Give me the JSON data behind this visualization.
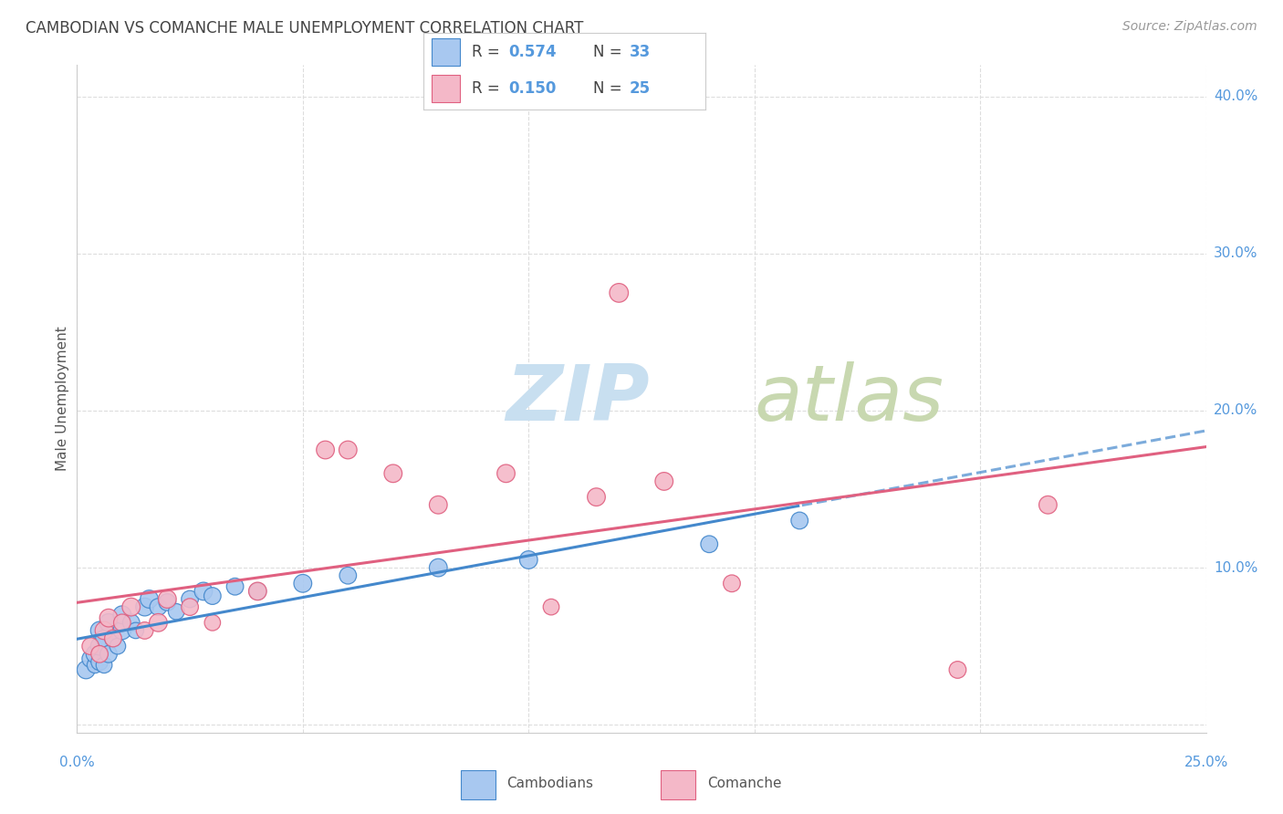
{
  "title": "CAMBODIAN VS COMANCHE MALE UNEMPLOYMENT CORRELATION CHART",
  "source": "Source: ZipAtlas.com",
  "ylabel": "Male Unemployment",
  "xlim": [
    0.0,
    0.25
  ],
  "ylim": [
    -0.005,
    0.42
  ],
  "yticks": [
    0.0,
    0.1,
    0.2,
    0.3,
    0.4
  ],
  "ytick_labels": [
    "",
    "10.0%",
    "20.0%",
    "30.0%",
    "40.0%"
  ],
  "xticks": [
    0.0,
    0.05,
    0.1,
    0.15,
    0.2,
    0.25
  ],
  "blue_color": "#a8c8f0",
  "pink_color": "#f4b8c8",
  "trend_blue": "#4488cc",
  "trend_pink": "#e06080",
  "blue_scatter_x": [
    0.002,
    0.003,
    0.004,
    0.004,
    0.005,
    0.005,
    0.005,
    0.006,
    0.006,
    0.007,
    0.007,
    0.008,
    0.009,
    0.01,
    0.01,
    0.012,
    0.013,
    0.015,
    0.016,
    0.018,
    0.02,
    0.022,
    0.025,
    0.028,
    0.03,
    0.035,
    0.04,
    0.05,
    0.06,
    0.08,
    0.1,
    0.14,
    0.16
  ],
  "blue_scatter_y": [
    0.035,
    0.042,
    0.038,
    0.045,
    0.04,
    0.05,
    0.06,
    0.038,
    0.055,
    0.045,
    0.065,
    0.055,
    0.05,
    0.06,
    0.07,
    0.065,
    0.06,
    0.075,
    0.08,
    0.075,
    0.078,
    0.072,
    0.08,
    0.085,
    0.082,
    0.088,
    0.085,
    0.09,
    0.095,
    0.1,
    0.105,
    0.115,
    0.13
  ],
  "blue_scatter_sizes": [
    200,
    180,
    160,
    200,
    180,
    200,
    200,
    160,
    180,
    180,
    200,
    180,
    160,
    200,
    200,
    180,
    160,
    200,
    200,
    180,
    180,
    160,
    180,
    200,
    180,
    180,
    180,
    200,
    180,
    200,
    200,
    180,
    180
  ],
  "pink_scatter_x": [
    0.003,
    0.005,
    0.006,
    0.007,
    0.008,
    0.01,
    0.012,
    0.015,
    0.018,
    0.02,
    0.025,
    0.03,
    0.04,
    0.055,
    0.06,
    0.07,
    0.08,
    0.095,
    0.105,
    0.115,
    0.12,
    0.13,
    0.145,
    0.195,
    0.215
  ],
  "pink_scatter_y": [
    0.05,
    0.045,
    0.06,
    0.068,
    0.055,
    0.065,
    0.075,
    0.06,
    0.065,
    0.08,
    0.075,
    0.065,
    0.085,
    0.175,
    0.175,
    0.16,
    0.14,
    0.16,
    0.075,
    0.145,
    0.275,
    0.155,
    0.09,
    0.035,
    0.14
  ],
  "pink_scatter_sizes": [
    180,
    180,
    200,
    200,
    180,
    180,
    200,
    180,
    200,
    200,
    180,
    160,
    200,
    200,
    200,
    200,
    200,
    200,
    160,
    200,
    220,
    200,
    180,
    180,
    200
  ],
  "watermark_zip": "ZIP",
  "watermark_atlas": "atlas",
  "watermark_color_zip": "#c8dff0",
  "watermark_color_atlas": "#c8d8b0",
  "grid_color": "#dddddd",
  "axis_color": "#cccccc",
  "tick_color": "#5599dd",
  "text_color": "#555555",
  "title_color": "#444444"
}
